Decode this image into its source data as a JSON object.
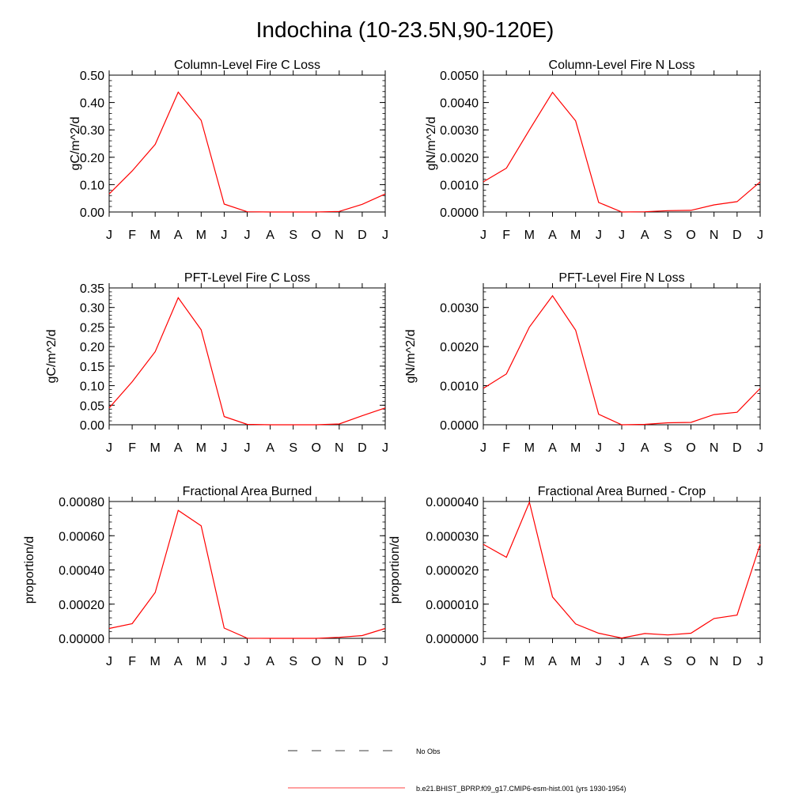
{
  "page": {
    "title": "Indochina (10-23.5N,90-120E)"
  },
  "month_ticks": [
    "J",
    "F",
    "M",
    "A",
    "M",
    "J",
    "J",
    "A",
    "S",
    "O",
    "N",
    "D",
    "J"
  ],
  "chart_data": [
    {
      "type": "line",
      "title": "Column-Level Fire C Loss",
      "ylabel": "gC/m^2/d",
      "ylim": [
        0,
        0.5
      ],
      "yticks": [
        0,
        0.1,
        0.2,
        0.3,
        0.4,
        0.5
      ],
      "ytick_labels": [
        "0.00",
        "0.10",
        "0.20",
        "0.30",
        "0.40",
        "0.50"
      ],
      "categories": [
        "J",
        "F",
        "M",
        "A",
        "M",
        "J",
        "J",
        "A",
        "S",
        "O",
        "N",
        "D",
        "J"
      ],
      "series": [
        {
          "values": [
            0.066,
            0.15,
            0.247,
            0.438,
            0.335,
            0.029,
            0.001,
            0.0,
            0.0,
            0.0,
            0.002,
            0.028,
            0.066
          ]
        }
      ]
    },
    {
      "type": "line",
      "title": "Column-Level Fire N Loss",
      "ylabel": "gN/m^2/d",
      "ylim": [
        0,
        0.005
      ],
      "yticks": [
        0,
        0.001,
        0.002,
        0.003,
        0.004,
        0.005
      ],
      "ytick_labels": [
        "0.0000",
        "0.0010",
        "0.0020",
        "0.0030",
        "0.0040",
        "0.0050"
      ],
      "categories": [
        "J",
        "F",
        "M",
        "A",
        "M",
        "J",
        "J",
        "A",
        "S",
        "O",
        "N",
        "D",
        "J"
      ],
      "series": [
        {
          "values": [
            0.0011,
            0.0016,
            0.003,
            0.00437,
            0.00333,
            0.00035,
            0.0,
            1e-05,
            5e-05,
            6e-05,
            0.00026,
            0.00038,
            0.0011
          ]
        }
      ]
    },
    {
      "type": "line",
      "title": "PFT-Level Fire C Loss",
      "ylabel": "gC/m^2/d",
      "ylim": [
        0,
        0.35
      ],
      "yticks": [
        0,
        0.05,
        0.1,
        0.15,
        0.2,
        0.25,
        0.3,
        0.35
      ],
      "ytick_labels": [
        "0.00",
        "0.05",
        "0.10",
        "0.15",
        "0.20",
        "0.25",
        "0.30",
        "0.35"
      ],
      "categories": [
        "J",
        "F",
        "M",
        "A",
        "M",
        "J",
        "J",
        "A",
        "S",
        "O",
        "N",
        "D",
        "J"
      ],
      "series": [
        {
          "values": [
            0.043,
            0.11,
            0.187,
            0.325,
            0.243,
            0.021,
            0.001,
            0.0,
            0.0,
            0.0,
            0.002,
            0.023,
            0.043
          ]
        }
      ]
    },
    {
      "type": "line",
      "title": "PFT-Level Fire N Loss",
      "ylabel": "gN/m^2/d",
      "ylim": [
        0,
        0.0035
      ],
      "yticks": [
        0,
        0.001,
        0.002,
        0.003
      ],
      "ytick_labels": [
        "0.0000",
        "0.0010",
        "0.0020",
        "0.0030"
      ],
      "categories": [
        "J",
        "F",
        "M",
        "A",
        "M",
        "J",
        "J",
        "A",
        "S",
        "O",
        "N",
        "D",
        "J"
      ],
      "series": [
        {
          "values": [
            0.00093,
            0.0013,
            0.0025,
            0.0033,
            0.00242,
            0.00027,
            0.0,
            1e-05,
            5e-05,
            6e-05,
            0.00026,
            0.00032,
            0.00093
          ]
        }
      ]
    },
    {
      "type": "line",
      "title": "Fractional Area Burned",
      "ylabel": "proportion/d",
      "ylim": [
        0,
        0.0008
      ],
      "yticks": [
        0,
        0.0002,
        0.0004,
        0.0006,
        0.0008
      ],
      "ytick_labels": [
        "0.00000",
        "0.00020",
        "0.00040",
        "0.00060",
        "0.00080"
      ],
      "categories": [
        "J",
        "F",
        "M",
        "A",
        "M",
        "J",
        "J",
        "A",
        "S",
        "O",
        "N",
        "D",
        "J"
      ],
      "series": [
        {
          "values": [
            5.8e-05,
            8.6e-05,
            0.000268,
            0.000748,
            0.000658,
            6e-05,
            1e-06,
            0.0,
            0.0,
            0.0,
            6e-06,
            1.6e-05,
            5.8e-05
          ]
        }
      ]
    },
    {
      "type": "line",
      "title": "Fractional Area Burned - Crop",
      "ylabel": "proportion/d",
      "ylim": [
        0,
        4e-05
      ],
      "yticks": [
        0,
        1e-05,
        2e-05,
        3e-05,
        4e-05
      ],
      "ytick_labels": [
        "0.000000",
        "0.000010",
        "0.000020",
        "0.000030",
        "0.000040"
      ],
      "categories": [
        "J",
        "F",
        "M",
        "A",
        "M",
        "J",
        "J",
        "A",
        "S",
        "O",
        "N",
        "D",
        "J"
      ],
      "series": [
        {
          "values": [
            2.75e-05,
            2.37e-05,
            3.98e-05,
            1.21e-05,
            4.2e-06,
            1.5e-06,
            1e-07,
            1.4e-06,
            1e-06,
            1.5e-06,
            5.8e-06,
            6.8e-06,
            2.75e-05
          ]
        }
      ]
    }
  ],
  "legend": {
    "items": [
      {
        "label": "No Obs",
        "style": "dashed",
        "color": "#000000"
      },
      {
        "label": "b.e21.BHIST_BPRP.f09_g17.CMIP6-esm-hist.001 (yrs 1930-1954)",
        "style": "solid",
        "color": "#ff0000"
      }
    ]
  },
  "colors": {
    "series": "#ff0000",
    "axes": "#000000",
    "background": "#ffffff"
  }
}
